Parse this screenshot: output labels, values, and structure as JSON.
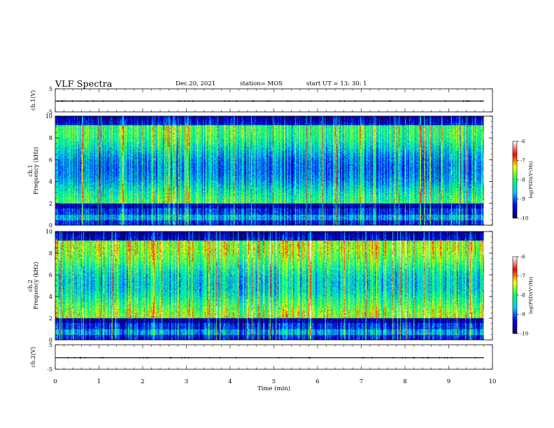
{
  "header": {
    "title": "VLF Spectra",
    "date": "Dec.20, 2021",
    "station": "station= MOS",
    "start": "start  UT =   13: 30: 1"
  },
  "chart_data": [
    {
      "type": "line",
      "title": "",
      "ylabel": "ch.1(V)",
      "ylim": [
        -5,
        5
      ],
      "yticks": [
        "5",
        "-5"
      ],
      "x": [
        0,
        10
      ],
      "series": [
        {
          "values": [
            -0.3,
            -0.3
          ]
        }
      ]
    },
    {
      "type": "heatmap",
      "ylabel": [
        "ch.1",
        "Frequency (kHz)"
      ],
      "ylim": [
        0,
        10
      ],
      "yticks": [
        "0",
        "2",
        "4",
        "6",
        "8",
        "10"
      ],
      "data_extent_min": 9.8,
      "colorbar": {
        "label": "log(PSD)(V²/Hz)",
        "range": [
          -10,
          -6
        ],
        "ticks": [
          "-6",
          "-7",
          "-8",
          "-9",
          "-10"
        ]
      }
    },
    {
      "type": "heatmap",
      "ylabel": [
        "ch.2",
        "Frequency (kHz)"
      ],
      "ylim": [
        0,
        10
      ],
      "yticks": [
        "0",
        "2",
        "4",
        "6",
        "8",
        "10"
      ],
      "data_extent_min": 9.8,
      "colorbar": {
        "label": "log(PSD)(V²/Hz)",
        "range": [
          -10,
          -6
        ],
        "ticks": [
          "-6",
          "-7",
          "-8",
          "-9",
          "-10"
        ]
      }
    },
    {
      "type": "line",
      "ylabel": "ch.2(V)",
      "ylim": [
        -5,
        5
      ],
      "yticks": [
        "5",
        "-5"
      ],
      "x": [
        0,
        10
      ],
      "series": [
        {
          "values": [
            -0.3,
            -0.3
          ]
        }
      ]
    }
  ],
  "xaxis": {
    "label": "Time (min)",
    "range": [
      0,
      10
    ],
    "ticks": [
      "0",
      "1",
      "2",
      "3",
      "4",
      "5",
      "6",
      "7",
      "8",
      "9",
      "10"
    ]
  },
  "colors": {
    "colormap": [
      "#08006e",
      "#0000ff",
      "#00ccff",
      "#00ff66",
      "#ffff00",
      "#ff0000",
      "#ffffff"
    ]
  }
}
